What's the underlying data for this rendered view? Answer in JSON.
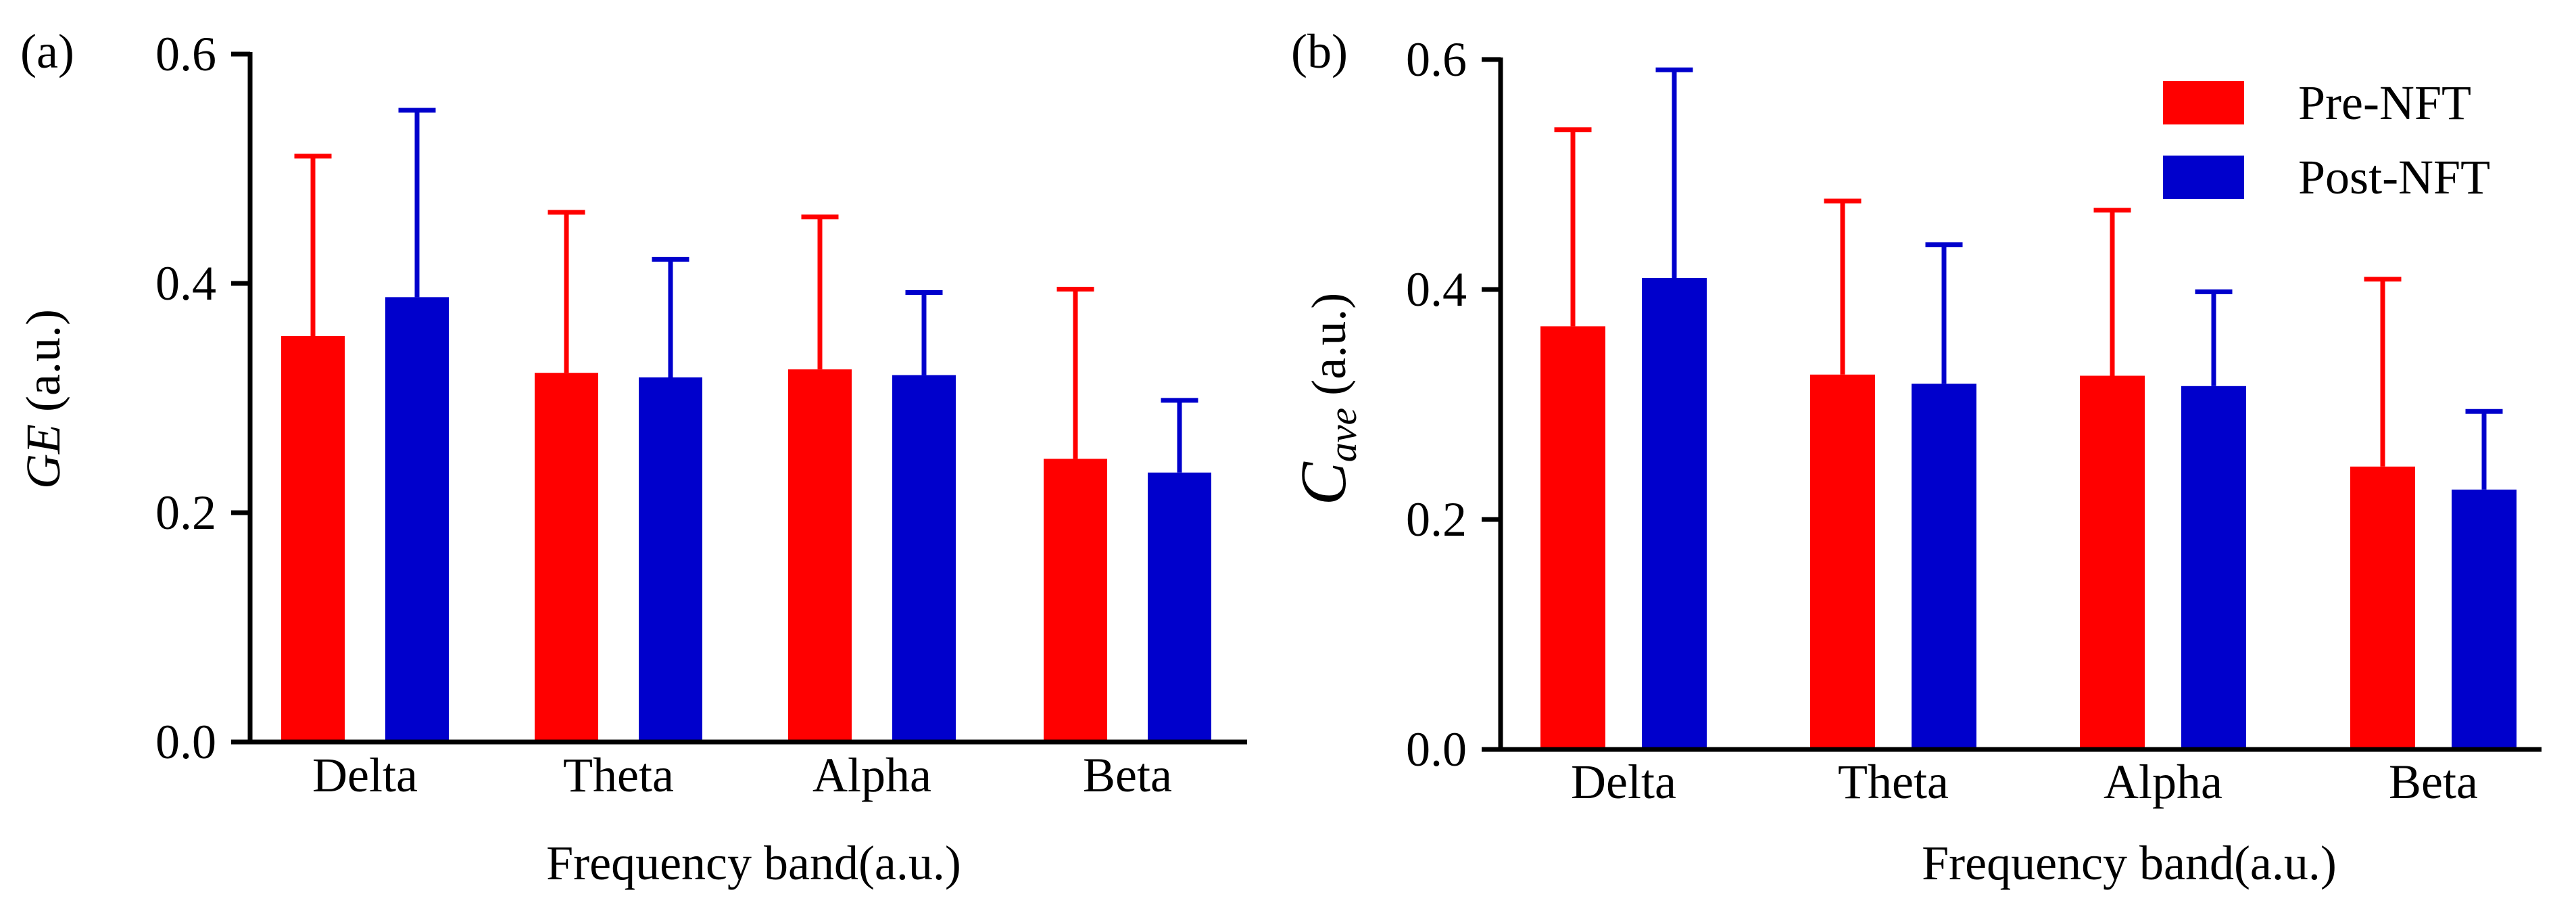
{
  "colors": {
    "pre": "#ff0000",
    "post": "#0000cc",
    "axis": "#000000"
  },
  "legend": {
    "pre_label": "Pre-NFT",
    "post_label": "Post-NFT"
  },
  "chart_data": [
    {
      "type": "bar",
      "panel_label": "(a)",
      "categories": [
        "Delta",
        "Theta",
        "Alpha",
        "Beta"
      ],
      "series": [
        {
          "name": "Pre-NFT",
          "values": [
            0.354,
            0.322,
            0.325,
            0.247
          ],
          "error_upper": [
            0.511,
            0.462,
            0.458,
            0.395
          ]
        },
        {
          "name": "Post-NFT",
          "values": [
            0.388,
            0.318,
            0.32,
            0.235
          ],
          "error_upper": [
            0.551,
            0.421,
            0.392,
            0.298
          ]
        }
      ],
      "xlabel": "Frequency band(a.u.)",
      "ylabel_italic": "GE",
      "ylabel_unit": "(a.u.)",
      "ylim": [
        0.0,
        0.6
      ],
      "yticks": [
        "0.0",
        "0.2",
        "0.4",
        "0.6"
      ],
      "legend": false
    },
    {
      "type": "bar",
      "panel_label": "(b)",
      "categories": [
        "Delta",
        "Theta",
        "Alpha",
        "Beta"
      ],
      "series": [
        {
          "name": "Pre-NFT",
          "values": [
            0.368,
            0.326,
            0.325,
            0.246
          ],
          "error_upper": [
            0.539,
            0.477,
            0.469,
            0.409
          ]
        },
        {
          "name": "Post-NFT",
          "values": [
            0.41,
            0.318,
            0.316,
            0.226
          ],
          "error_upper": [
            0.591,
            0.439,
            0.398,
            0.294
          ]
        }
      ],
      "xlabel": "Frequency band(a.u.)",
      "ylabel_main": "C",
      "ylabel_sub": "ave",
      "ylabel_unit": "(a.u.)",
      "ylim": [
        0.0,
        0.6
      ],
      "yticks": [
        "0.0",
        "0.2",
        "0.4",
        "0.6"
      ],
      "legend": true,
      "legend_position": "top-right"
    }
  ]
}
